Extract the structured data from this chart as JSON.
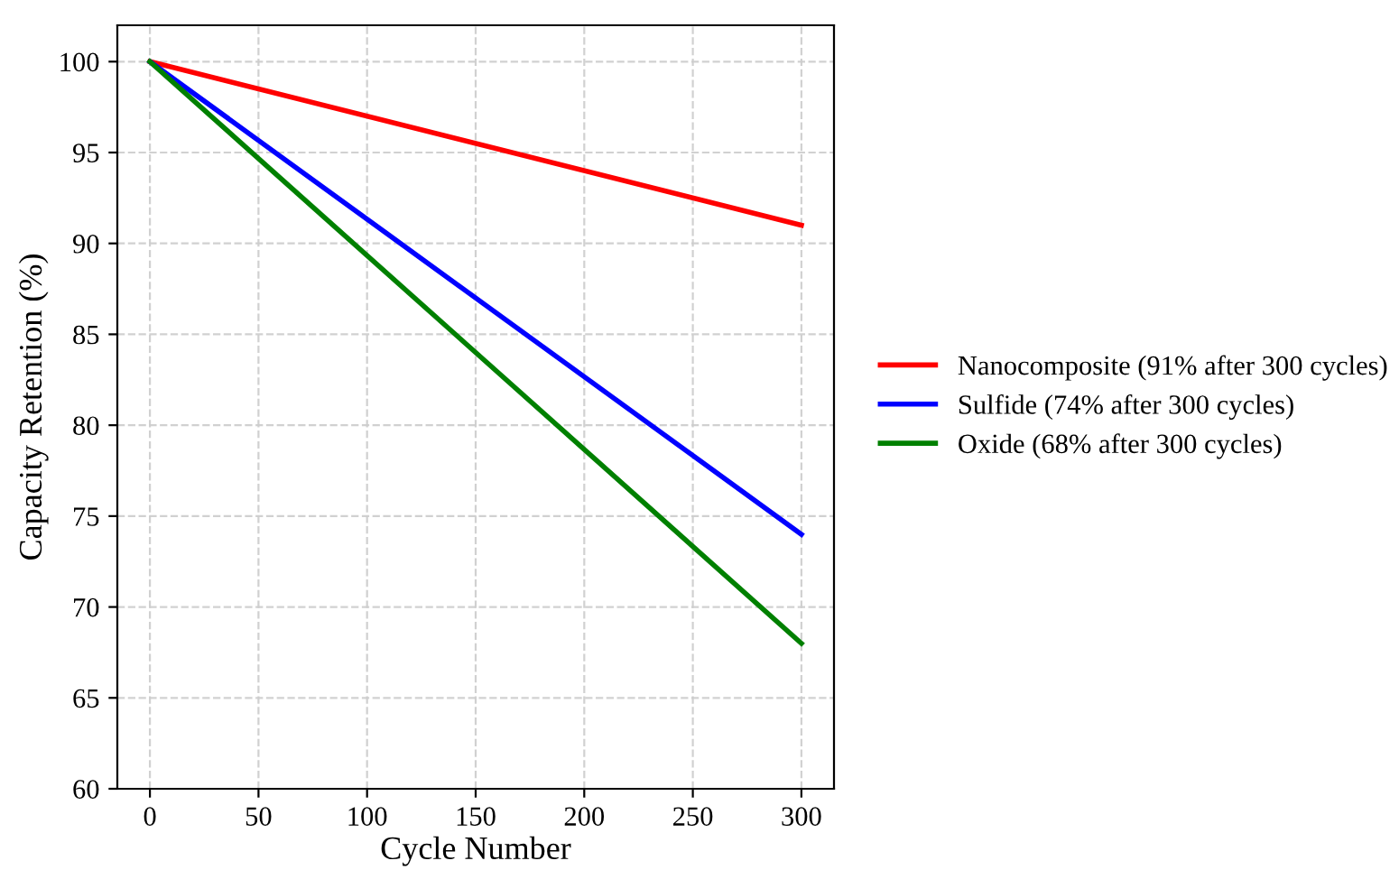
{
  "chart_data": {
    "type": "line",
    "xlabel": "Cycle Number",
    "ylabel": "Capacity Retention (%)",
    "x": [
      0,
      300
    ],
    "series": [
      {
        "name": "Nanocomposite (91% after 300 cycles)",
        "color": "#ff0000",
        "values": [
          100,
          91
        ]
      },
      {
        "name": "Sulfide (74% after 300 cycles)",
        "color": "#0000ff",
        "values": [
          100,
          74
        ]
      },
      {
        "name": "Oxide (68% after 300 cycles)",
        "color": "#008000",
        "values": [
          100,
          68
        ]
      }
    ],
    "xlim": [
      -15,
      315
    ],
    "xticks": [
      0,
      50,
      100,
      150,
      200,
      250,
      300
    ],
    "ylim": [
      60,
      102
    ],
    "yticks": [
      60,
      65,
      70,
      75,
      80,
      85,
      90,
      95,
      100
    ],
    "grid": true,
    "legend": "right",
    "line_style": "solid",
    "marker": "none"
  }
}
